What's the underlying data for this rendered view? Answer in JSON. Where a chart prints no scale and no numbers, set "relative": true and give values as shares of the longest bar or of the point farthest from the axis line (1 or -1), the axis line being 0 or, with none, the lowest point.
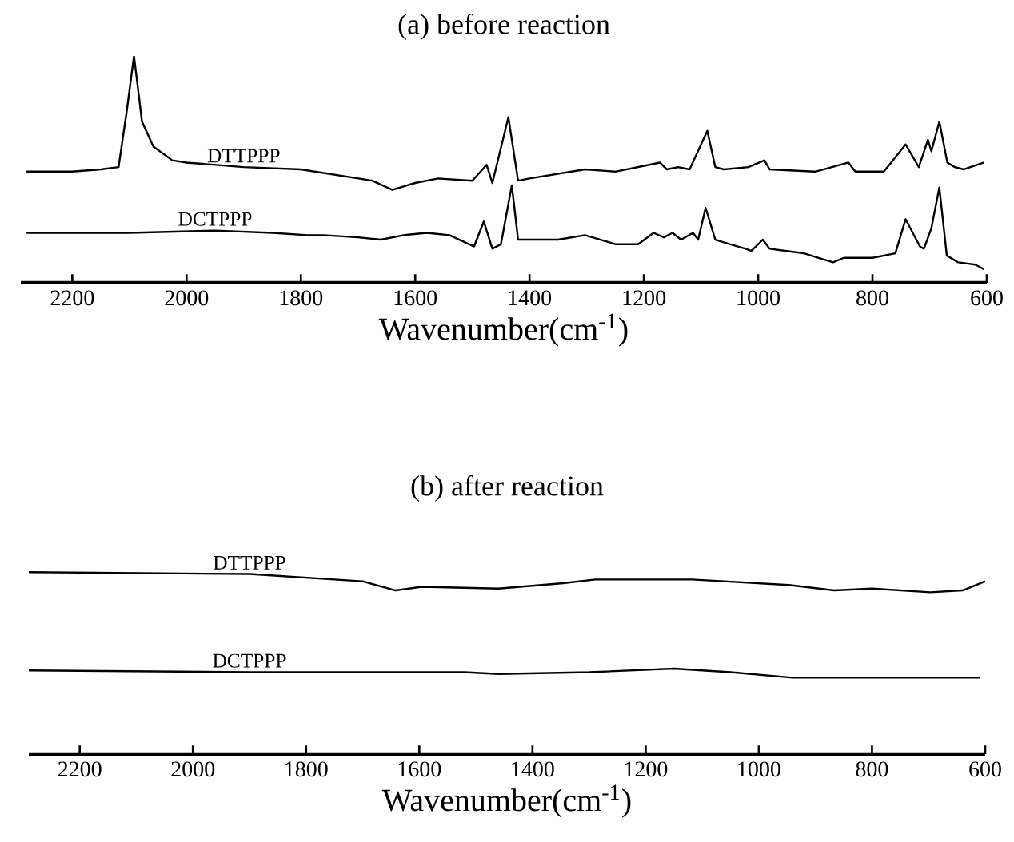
{
  "chart_data": [
    {
      "type": "line",
      "title": "(a) before reaction",
      "xlabel": "Wavenumber(cm$^{-1}$)",
      "relative": true,
      "tick_labels": "x",
      "xlim": [
        2290,
        600
      ],
      "xticks": [
        2200,
        2000,
        1800,
        1600,
        1400,
        1200,
        1000,
        800,
        600
      ],
      "series": [
        {
          "name": "DTTPPP",
          "color": "#000000",
          "x": [
            2280,
            2200,
            2150,
            2119,
            2105,
            2092,
            2078,
            2058,
            2025,
            2000,
            1900,
            1800,
            1675,
            1640,
            1600,
            1560,
            1500,
            1475,
            1465,
            1437,
            1420,
            1400,
            1303,
            1250,
            1172,
            1160,
            1140,
            1120,
            1089,
            1075,
            1060,
            1017,
            989,
            980,
            900,
            842,
            830,
            780,
            742,
            719,
            703,
            697,
            683,
            669,
            656,
            640,
            605
          ],
          "values": [
            0.49,
            0.49,
            0.5,
            0.51,
            0.75,
            1.0,
            0.71,
            0.6,
            0.54,
            0.53,
            0.51,
            0.5,
            0.45,
            0.41,
            0.44,
            0.46,
            0.45,
            0.52,
            0.44,
            0.73,
            0.45,
            0.46,
            0.5,
            0.49,
            0.53,
            0.5,
            0.51,
            0.5,
            0.67,
            0.51,
            0.5,
            0.51,
            0.54,
            0.5,
            0.49,
            0.53,
            0.49,
            0.49,
            0.61,
            0.51,
            0.63,
            0.58,
            0.71,
            0.53,
            0.51,
            0.5,
            0.53
          ]
        },
        {
          "name": "DCTPPP",
          "color": "#000000",
          "x": [
            2280,
            2100,
            1950,
            1850,
            1789,
            1760,
            1700,
            1660,
            1620,
            1580,
            1540,
            1497,
            1480,
            1465,
            1450,
            1431,
            1420,
            1400,
            1350,
            1303,
            1250,
            1210,
            1183,
            1165,
            1150,
            1135,
            1114,
            1105,
            1092,
            1075,
            1050,
            1022,
            1012,
            992,
            980,
            950,
            920,
            869,
            850,
            800,
            760,
            742,
            717,
            710,
            697,
            683,
            670,
            650,
            620,
            605
          ],
          "values": [
            0.22,
            0.22,
            0.23,
            0.22,
            0.21,
            0.21,
            0.2,
            0.19,
            0.21,
            0.22,
            0.21,
            0.16,
            0.27,
            0.15,
            0.17,
            0.43,
            0.19,
            0.19,
            0.19,
            0.21,
            0.17,
            0.17,
            0.22,
            0.2,
            0.22,
            0.19,
            0.22,
            0.19,
            0.33,
            0.19,
            0.17,
            0.15,
            0.14,
            0.19,
            0.15,
            0.14,
            0.13,
            0.09,
            0.11,
            0.11,
            0.13,
            0.28,
            0.16,
            0.15,
            0.24,
            0.42,
            0.12,
            0.09,
            0.08,
            0.06
          ]
        }
      ]
    },
    {
      "type": "line",
      "title": "(b) after reaction",
      "xlabel": "Wavenumber(cm$^{-1}$)",
      "relative": true,
      "tick_labels": "x",
      "xlim": [
        2290,
        600
      ],
      "xticks": [
        2200,
        2000,
        1800,
        1600,
        1400,
        1200,
        1000,
        800,
        600
      ],
      "series": [
        {
          "name": "DTTPPP",
          "color": "#000000",
          "x": [
            2290,
            1900,
            1750,
            1700,
            1642,
            1596,
            1460,
            1346,
            1289,
            1118,
            947,
            867,
            800,
            697,
            640,
            600
          ],
          "values": [
            1.0,
            0.99,
            0.96,
            0.95,
            0.9,
            0.92,
            0.91,
            0.94,
            0.96,
            0.96,
            0.93,
            0.9,
            0.91,
            0.89,
            0.9,
            0.95
          ]
        },
        {
          "name": "DCTPPP",
          "color": "#000000",
          "x": [
            2290,
            1900,
            1520,
            1460,
            1300,
            1150,
            1050,
            940,
            800,
            610
          ],
          "values": [
            0.46,
            0.45,
            0.45,
            0.44,
            0.45,
            0.47,
            0.45,
            0.42,
            0.42,
            0.42
          ]
        }
      ]
    }
  ]
}
